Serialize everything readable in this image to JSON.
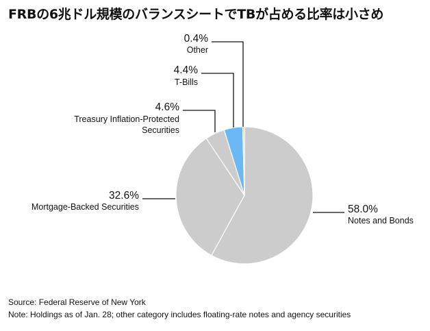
{
  "title": "FRBの6兆ドル規模のバランスシートでTBが占める比率は小さめ",
  "chart_data": {
    "type": "pie",
    "title": "FRBの6兆ドル規模のバランスシートでTBが占める比率は小さめ",
    "start_angle_deg": 0,
    "direction": "clockwise",
    "slices": [
      {
        "label": "Notes and Bonds",
        "label_lines": [
          "Notes and Bonds"
        ],
        "value": 58.0,
        "value_text": "58.0%",
        "color": "#cccccc"
      },
      {
        "label": "Mortgage-Backed Securities",
        "label_lines": [
          "Mortgage-Backed Securities"
        ],
        "value": 32.6,
        "value_text": "32.6%",
        "color": "#cccccc"
      },
      {
        "label": "Treasury Inflation-Protected Securities",
        "label_lines": [
          "Treasury Inflation-Protected",
          "Securities"
        ],
        "value": 4.6,
        "value_text": "4.6%",
        "color": "#cccccc"
      },
      {
        "label": "T-Bills",
        "label_lines": [
          "T-Bills"
        ],
        "value": 4.4,
        "value_text": "4.4%",
        "color": "#6bb8f5"
      },
      {
        "label": "Other",
        "label_lines": [
          "Other"
        ],
        "value": 0.4,
        "value_text": "0.4%",
        "color": "#cccccc"
      }
    ],
    "slice_border_color": "#ffffff",
    "leader_line_color": "#111111"
  },
  "footer": {
    "source": "Source: Federal Reserve of New York",
    "note": "Note: Holdings as of Jan. 28; other category includes floating-rate notes and agency securities"
  }
}
